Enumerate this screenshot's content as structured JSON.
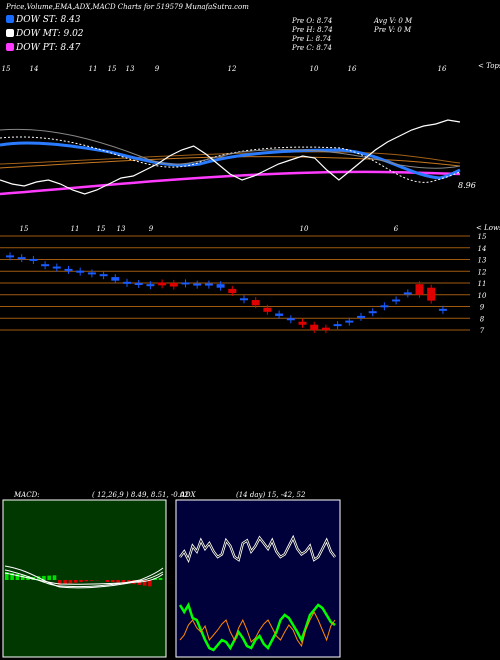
{
  "header": {
    "title": "Price,Volume,EMA,ADX,MACD Charts for 519579 MunafaSutra.com",
    "dow_st": "DOW ST: 8.43",
    "dow_mt": "DOW MT: 9.02",
    "dow_pt": "DOW PT: 8.47",
    "dow_st_color": "#1a6cff",
    "dow_mt_color": "#ffffff",
    "dow_pt_color": "#ff3bff",
    "pre_o": "Pre  O: 8.74",
    "pre_h": "Pre  H: 8.74",
    "pre_l": "Pre  L: 8.74",
    "pre_c": "Pre  C: 8.74",
    "avg_v": "Avg V: 0  M",
    "pre_v": "Pre  V: 0  M"
  },
  "top_panel": {
    "tag": "< Tops",
    "date_labels": [
      "15",
      "14",
      "11",
      "15",
      "13",
      "9",
      "12",
      "10",
      "16",
      "16"
    ],
    "last_value": "8.96"
  },
  "lows_panel": {
    "tag": "< Lows",
    "date_labels": [
      "15",
      "11",
      "15",
      "13",
      "9",
      "10",
      "6"
    ],
    "price_ticks": [
      "15",
      "14",
      "13",
      "12",
      "11",
      "10",
      "9",
      "8",
      "7"
    ]
  },
  "macd": {
    "label": "MACD:",
    "params": "( 12,26,9 ) 8.49,  8.51,  -0.02",
    "hist_pos_color": "#00dd00",
    "hist_neg_color": "#dd0000"
  },
  "adx": {
    "label": "ADX",
    "params": "(14  day) 15,  -42,  52",
    "adx_color": "#ffffff",
    "plus_color": "#00ff00",
    "minus_color": "#ff8800"
  },
  "chart_data": {
    "type": "line",
    "price_ticks": [
      15,
      14,
      13,
      12,
      11,
      10,
      9,
      8,
      7
    ],
    "candles": [
      {
        "o": 13.35,
        "c": 13.2,
        "dir": "down"
      },
      {
        "o": 13.2,
        "c": 13.05,
        "dir": "down"
      },
      {
        "o": 13.05,
        "c": 12.95,
        "dir": "down"
      },
      {
        "o": 12.6,
        "c": 12.5,
        "dir": "down"
      },
      {
        "o": 12.4,
        "c": 12.3,
        "dir": "down"
      },
      {
        "o": 12.2,
        "c": 12.1,
        "dir": "down"
      },
      {
        "o": 12.05,
        "c": 11.95,
        "dir": "down"
      },
      {
        "o": 11.9,
        "c": 11.8,
        "dir": "down"
      },
      {
        "o": 11.75,
        "c": 11.6,
        "dir": "down"
      },
      {
        "o": 11.5,
        "c": 11.2,
        "dir": "down"
      },
      {
        "o": 11.1,
        "c": 11.0,
        "dir": "down"
      },
      {
        "o": 11.0,
        "c": 10.9,
        "dir": "down"
      },
      {
        "o": 10.9,
        "c": 10.85,
        "dir": "down"
      },
      {
        "o": 10.8,
        "c": 11.05,
        "dir": "up"
      },
      {
        "o": 11.0,
        "c": 10.7,
        "dir": "up"
      },
      {
        "o": 11.05,
        "c": 11.0,
        "dir": "down"
      },
      {
        "o": 10.95,
        "c": 10.9,
        "dir": "down"
      },
      {
        "o": 10.95,
        "c": 10.85,
        "dir": "down"
      },
      {
        "o": 10.9,
        "c": 10.6,
        "dir": "down"
      },
      {
        "o": 10.5,
        "c": 10.15,
        "dir": "up"
      },
      {
        "o": 9.7,
        "c": 9.55,
        "dir": "down"
      },
      {
        "o": 9.55,
        "c": 9.1,
        "dir": "up"
      },
      {
        "o": 8.9,
        "c": 8.55,
        "dir": "up"
      },
      {
        "o": 8.4,
        "c": 8.2,
        "dir": "down"
      },
      {
        "o": 8.0,
        "c": 7.85,
        "dir": "down"
      },
      {
        "o": 7.7,
        "c": 7.45,
        "dir": "up"
      },
      {
        "o": 7.45,
        "c": 7.0,
        "dir": "up"
      },
      {
        "o": 7.2,
        "c": 7.0,
        "dir": "up"
      },
      {
        "o": 7.5,
        "c": 7.4,
        "dir": "down"
      },
      {
        "o": 7.8,
        "c": 7.7,
        "dir": "down"
      },
      {
        "o": 8.2,
        "c": 8.1,
        "dir": "down"
      },
      {
        "o": 8.6,
        "c": 8.5,
        "dir": "down"
      },
      {
        "o": 9.1,
        "c": 9.0,
        "dir": "down"
      },
      {
        "o": 9.6,
        "c": 9.5,
        "dir": "down"
      },
      {
        "o": 10.2,
        "c": 10.1,
        "dir": "down"
      },
      {
        "o": 10.9,
        "c": 10.0,
        "dir": "up"
      },
      {
        "o": 10.6,
        "c": 9.5,
        "dir": "up"
      },
      {
        "o": 8.8,
        "c": 8.7,
        "dir": "down"
      }
    ],
    "ema_white": [
      0.55,
      0.57,
      0.58,
      0.56,
      0.55,
      0.57,
      0.6,
      0.62,
      0.6,
      0.57,
      0.54,
      0.53,
      0.5,
      0.47,
      0.43,
      0.4,
      0.38,
      0.42,
      0.47,
      0.52,
      0.55,
      0.53,
      0.5,
      0.47,
      0.45,
      0.43,
      0.44,
      0.5,
      0.55,
      0.5,
      0.45,
      0.4,
      0.36,
      0.33,
      0.3,
      0.28,
      0.27,
      0.25,
      0.26
    ],
    "adx_line": [
      60,
      70,
      55,
      80,
      70,
      90,
      75,
      85,
      70,
      60,
      65,
      90,
      80,
      60,
      55,
      85,
      90,
      70,
      80,
      95,
      85,
      75,
      90,
      70,
      60,
      65,
      80,
      95,
      75,
      65,
      70,
      80,
      55,
      60,
      75,
      90,
      70,
      60
    ]
  }
}
